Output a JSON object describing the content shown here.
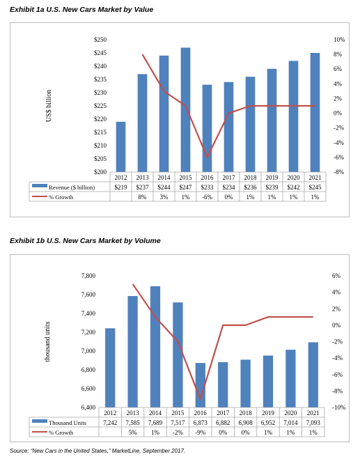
{
  "exhibit_1a": {
    "title": "Exhibit 1a  U.S. New Cars Market by Value",
    "colors": {
      "bar": "#4f81bd",
      "line": "#c0504d"
    }
  },
  "exhibit_1b": {
    "title": "Exhibit 1b  U.S. New Cars Market by Volume",
    "colors": {
      "bar": "#4f81bd",
      "line": "#c0504d"
    }
  },
  "source": "Source: “New Cars in the United States,” MarketLine, September 2017.",
  "chart_data": [
    {
      "type": "bar",
      "title": "Exhibit 1a  U.S. New Cars Market by Value",
      "categories": [
        "2012",
        "2013",
        "2014",
        "2015",
        "2016",
        "2017",
        "2018",
        "2019",
        "2020",
        "2021"
      ],
      "ylabel": "US$ billion",
      "ylim": [
        200,
        250
      ],
      "yticks": [
        "$200",
        "$205",
        "$210",
        "$215",
        "$220",
        "$225",
        "$230",
        "$235",
        "$240",
        "$245",
        "$250"
      ],
      "y2lim": [
        -8,
        10
      ],
      "y2ticks": [
        "-8%",
        "-6%",
        "-4%",
        "-2%",
        "0%",
        "2%",
        "4%",
        "6%",
        "8%",
        "10%"
      ],
      "series": [
        {
          "name": "Revenue ($ billion)",
          "kind": "bar",
          "values": [
            219,
            237,
            244,
            247,
            233,
            234,
            236,
            239,
            242,
            245
          ],
          "labels": [
            "$219",
            "$237",
            "$244",
            "$247",
            "$233",
            "$234",
            "$236",
            "$239",
            "$242",
            "$245"
          ]
        },
        {
          "name": "% Growth",
          "kind": "line",
          "axis": "secondary",
          "values": [
            null,
            8,
            3,
            1,
            -6,
            0,
            1,
            1,
            1,
            1
          ],
          "labels": [
            "",
            "8%",
            "3%",
            "1%",
            "-6%",
            "0%",
            "1%",
            "1%",
            "1%",
            "1%"
          ]
        }
      ],
      "grid": false,
      "legend": "data-table"
    },
    {
      "type": "bar",
      "title": "Exhibit 1b  U.S. New Cars Market by Volume",
      "categories": [
        "2012",
        "2013",
        "2014",
        "2015",
        "2016",
        "2017",
        "2018",
        "2019",
        "2020",
        "2021"
      ],
      "ylabel": "thousand units",
      "ylim": [
        6400,
        7800
      ],
      "yticks": [
        "6,400",
        "6,600",
        "6,800",
        "7,000",
        "7,200",
        "7,400",
        "7,600",
        "7,800"
      ],
      "y2lim": [
        -10,
        6
      ],
      "y2ticks": [
        "-10%",
        "-8%",
        "-6%",
        "-4%",
        "-2%",
        "0%",
        "2%",
        "4%",
        "6%"
      ],
      "series": [
        {
          "name": "Thousand Units",
          "kind": "bar",
          "values": [
            7242,
            7585,
            7689,
            7517,
            6873,
            6882,
            6908,
            6952,
            7014,
            7093
          ],
          "labels": [
            "7,242",
            "7,585",
            "7,689",
            "7,517",
            "6,873",
            "6,882",
            "6,908",
            "6,952",
            "7,014",
            "7,093"
          ]
        },
        {
          "name": "% Growth",
          "kind": "line",
          "axis": "secondary",
          "values": [
            null,
            5,
            1,
            -2,
            -9,
            0,
            0,
            1,
            1,
            1
          ],
          "labels": [
            "",
            "5%",
            "1%",
            "-2%",
            "-9%",
            "0%",
            "0%",
            "1%",
            "1%",
            "1%"
          ]
        }
      ],
      "grid": false,
      "legend": "data-table"
    }
  ]
}
